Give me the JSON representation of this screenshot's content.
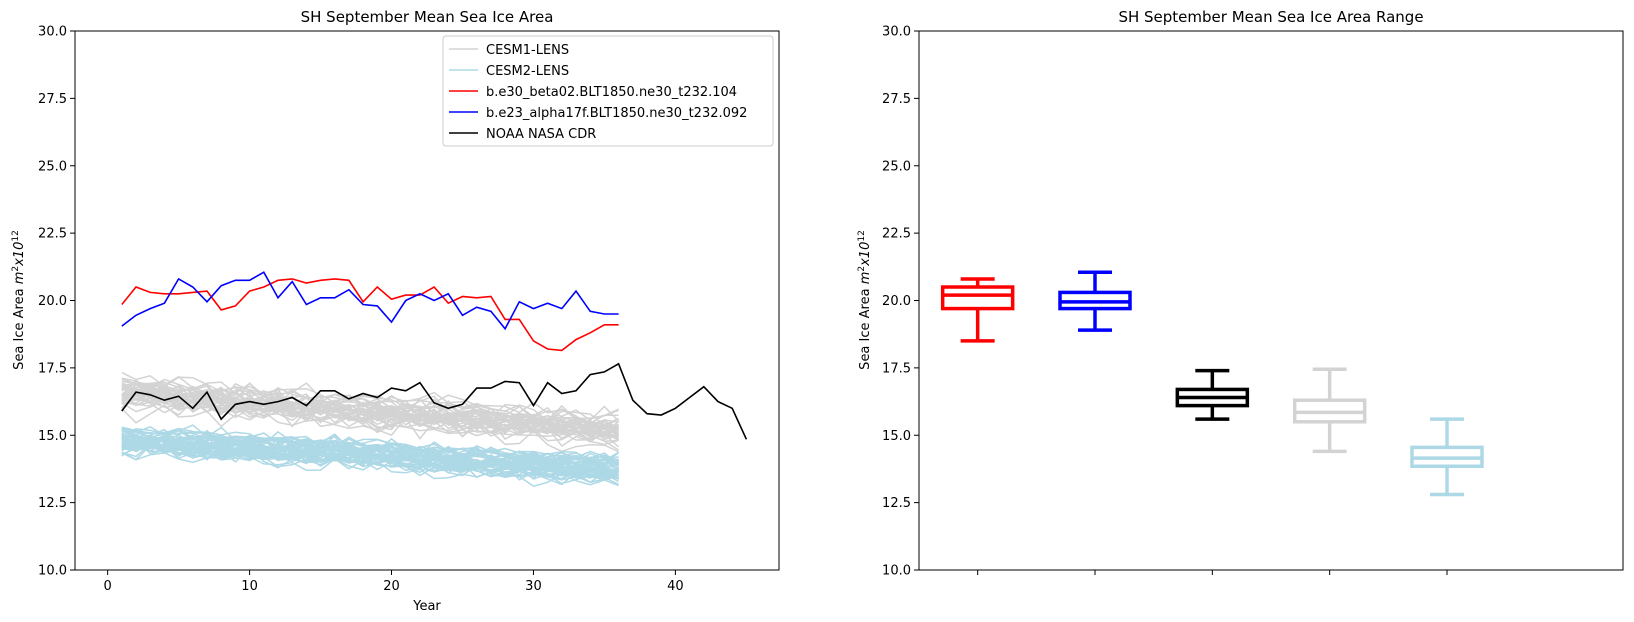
{
  "chart_data": [
    {
      "type": "line",
      "title": "SH September Mean Sea Ice Area",
      "xlabel": "Year",
      "ylabel_main": "Sea Ice Area ",
      "ylabel_unit_base": "m",
      "ylabel_unit_exp": "2",
      "ylabel_unit_mid": "x10",
      "ylabel_unit_exp2": "12",
      "xlim": [
        -2.3,
        47.3
      ],
      "ylim": [
        10.0,
        30.0
      ],
      "xticks": [
        0,
        10,
        20,
        30,
        40
      ],
      "xtick_labels": [
        "0",
        "10",
        "20",
        "30",
        "40"
      ],
      "yticks": [
        10.0,
        12.5,
        15.0,
        17.5,
        20.0,
        22.5,
        25.0,
        27.5,
        30.0
      ],
      "ytick_labels": [
        "10.0",
        "12.5",
        "15.0",
        "17.5",
        "20.0",
        "22.5",
        "25.0",
        "27.5",
        "30.0"
      ],
      "legend_position": "top-right",
      "legend": [
        {
          "label": "CESM1-LENS",
          "color": "#d3d3d3"
        },
        {
          "label": "CESM2-LENS",
          "color": "#add8e6"
        },
        {
          "label": "b.e30_beta02.BLT1850.ne30_t232.104",
          "color": "#ff0000"
        },
        {
          "label": "b.e23_alpha17f.BLT1850.ne30_t232.092",
          "color": "#0000ff"
        },
        {
          "label": "NOAA NASA CDR",
          "color": "#000000"
        }
      ],
      "ensembles": [
        {
          "name": "CESM1-LENS",
          "color": "#d3d3d3",
          "members": 40,
          "start_mean": 16.6,
          "end_mean": 15.2,
          "spread": 0.55,
          "years": [
            1,
            36
          ]
        },
        {
          "name": "CESM2-LENS",
          "color": "#add8e6",
          "members": 50,
          "start_mean": 14.8,
          "end_mean": 13.7,
          "spread": 0.45,
          "years": [
            1,
            36
          ]
        }
      ],
      "series": [
        {
          "name": "b.e30_beta02.BLT1850.ne30_t232.104",
          "color": "#ff0000",
          "x": [
            1,
            2,
            3,
            4,
            5,
            6,
            7,
            8,
            9,
            10,
            11,
            12,
            13,
            14,
            15,
            16,
            17,
            18,
            19,
            20,
            21,
            22,
            23,
            24,
            25,
            26,
            27,
            28,
            29,
            30,
            31,
            32,
            33,
            34,
            35,
            36
          ],
          "values": [
            19.85,
            20.5,
            20.3,
            20.25,
            20.25,
            20.3,
            20.35,
            19.65,
            19.8,
            20.35,
            20.5,
            20.75,
            20.8,
            20.65,
            20.75,
            20.8,
            20.75,
            19.95,
            20.5,
            20.05,
            20.2,
            20.2,
            20.5,
            19.9,
            20.15,
            20.1,
            20.15,
            19.3,
            19.3,
            18.5,
            18.2,
            18.15,
            18.55,
            18.8,
            19.1,
            19.1
          ]
        },
        {
          "name": "b.e23_alpha17f.BLT1850.ne30_t232.092",
          "color": "#0000ff",
          "x": [
            1,
            2,
            3,
            4,
            5,
            6,
            7,
            8,
            9,
            10,
            11,
            12,
            13,
            14,
            15,
            16,
            17,
            18,
            19,
            20,
            21,
            22,
            23,
            24,
            25,
            26,
            27,
            28,
            29,
            30,
            31,
            32,
            33,
            34,
            35,
            36
          ],
          "values": [
            19.05,
            19.45,
            19.7,
            19.9,
            20.8,
            20.5,
            19.95,
            20.55,
            20.75,
            20.75,
            21.05,
            20.1,
            20.7,
            19.85,
            20.1,
            20.1,
            20.4,
            19.85,
            19.8,
            19.2,
            20.0,
            20.25,
            20.0,
            20.25,
            19.45,
            19.75,
            19.6,
            18.95,
            19.95,
            19.7,
            19.9,
            19.7,
            20.35,
            19.6,
            19.5,
            19.5
          ]
        },
        {
          "name": "NOAA NASA CDR",
          "color": "#000000",
          "x": [
            1,
            2,
            3,
            4,
            5,
            6,
            7,
            8,
            9,
            10,
            11,
            12,
            13,
            14,
            15,
            16,
            17,
            18,
            19,
            20,
            21,
            22,
            23,
            24,
            25,
            26,
            27,
            28,
            29,
            30,
            31,
            32,
            33,
            34,
            35,
            36,
            37,
            38,
            39,
            40,
            41,
            42,
            43,
            44,
            45
          ],
          "values": [
            15.9,
            16.6,
            16.5,
            16.3,
            16.45,
            16.0,
            16.6,
            15.6,
            16.15,
            16.25,
            16.15,
            16.25,
            16.4,
            16.1,
            16.65,
            16.65,
            16.35,
            16.55,
            16.4,
            16.75,
            16.65,
            16.95,
            16.2,
            16.0,
            16.15,
            16.75,
            16.75,
            17.0,
            16.95,
            16.1,
            16.95,
            16.55,
            16.65,
            17.25,
            17.35,
            17.65,
            16.3,
            15.8,
            15.75,
            16.0,
            16.4,
            16.8,
            16.25,
            16.0,
            14.85
          ]
        }
      ]
    },
    {
      "type": "box",
      "title": "SH September Mean Sea Ice Area Range",
      "ylabel_main": "Sea Ice Area ",
      "ylabel_unit_base": "m",
      "ylabel_unit_exp": "2",
      "ylabel_unit_mid": "x10",
      "ylabel_unit_exp2": "12",
      "ylim": [
        10.0,
        30.0
      ],
      "yticks": [
        10.0,
        12.5,
        15.0,
        17.5,
        20.0,
        22.5,
        25.0,
        27.5,
        30.0
      ],
      "ytick_labels": [
        "10.0",
        "12.5",
        "15.0",
        "17.5",
        "20.0",
        "22.5",
        "25.0",
        "27.5",
        "30.0"
      ],
      "xtick_labels": [
        "",
        "",
        "",
        "",
        ""
      ],
      "boxes": [
        {
          "name": "b.e30_beta02.BLT1850.ne30_t232.104",
          "color": "#ff0000",
          "min": 18.5,
          "q1": 19.7,
          "median": 20.2,
          "q3": 20.5,
          "max": 20.8
        },
        {
          "name": "b.e23_alpha17f.BLT1850.ne30_t232.092",
          "color": "#0000ff",
          "min": 18.9,
          "q1": 19.7,
          "median": 19.95,
          "q3": 20.3,
          "max": 21.05
        },
        {
          "name": "NOAA NASA CDR",
          "color": "#000000",
          "min": 15.6,
          "q1": 16.1,
          "median": 16.4,
          "q3": 16.7,
          "max": 17.4
        },
        {
          "name": "CESM1-LENS",
          "color": "#d3d3d3",
          "min": 14.4,
          "q1": 15.5,
          "median": 15.85,
          "q3": 16.3,
          "max": 17.45
        },
        {
          "name": "CESM2-LENS",
          "color": "#add8e6",
          "min": 12.8,
          "q1": 13.85,
          "median": 14.15,
          "q3": 14.55,
          "max": 15.6
        }
      ]
    }
  ]
}
